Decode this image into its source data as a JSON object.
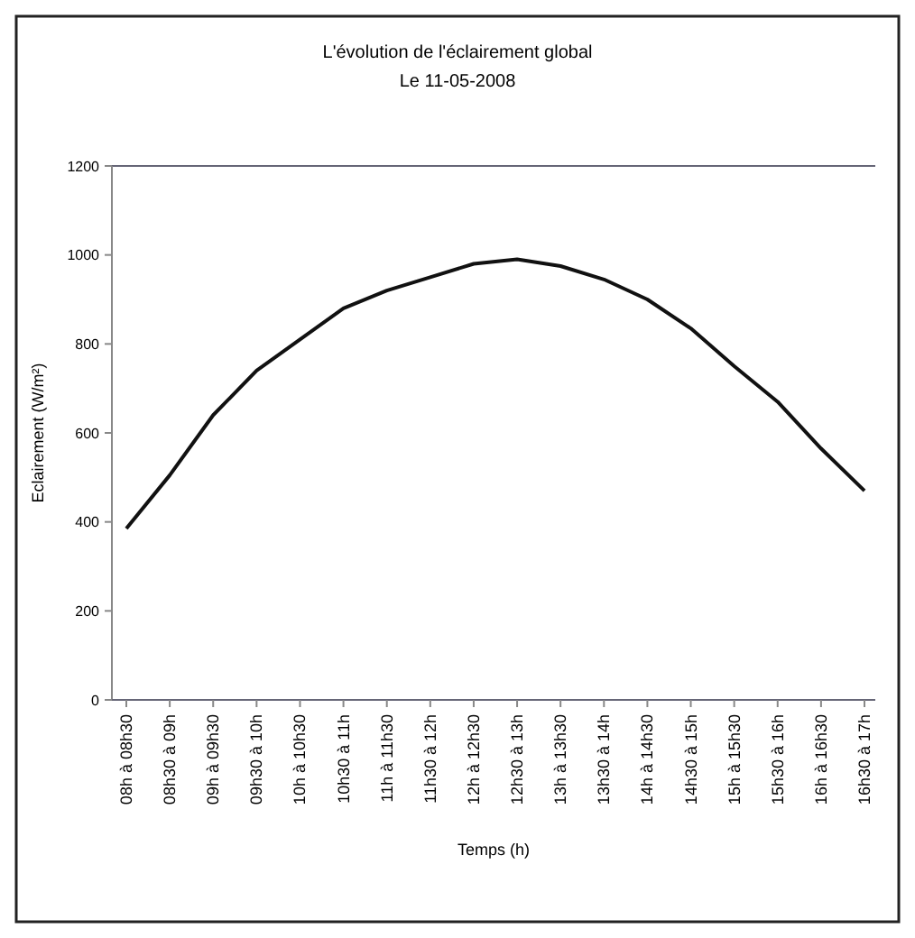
{
  "chart_data": {
    "type": "line",
    "title": "L'évolution de l'éclairement global",
    "subtitle": "Le 11-05-2008",
    "xlabel": "Temps (h)",
    "ylabel": "Eclairement (W/m²)",
    "categories": [
      "08h à 08h30",
      "08h30 à 09h",
      "09h à 09h30",
      "09h30 à 10h",
      "10h à 10h30",
      "10h30 à 11h",
      "11h à 11h30",
      "11h30 à 12h",
      "12h à 12h30",
      "12h30 à 13h",
      "13h à 13h30",
      "13h30 à 14h",
      "14h à 14h30",
      "14h30 à 15h",
      "15h à 15h30",
      "15h30 à 16h",
      "16h à 16h30",
      "16h30 à 17h"
    ],
    "series": [
      {
        "color": "#111111",
        "values": [
          385,
          505,
          640,
          740,
          810,
          880,
          920,
          950,
          980,
          990,
          975,
          945,
          900,
          835,
          750,
          670,
          565,
          470
        ]
      }
    ],
    "ylim": [
      0,
      1200
    ],
    "yticks": [
      0,
      200,
      400,
      600,
      800,
      1000,
      1200
    ],
    "grid": false,
    "marker": "none",
    "line_style": "solid"
  }
}
